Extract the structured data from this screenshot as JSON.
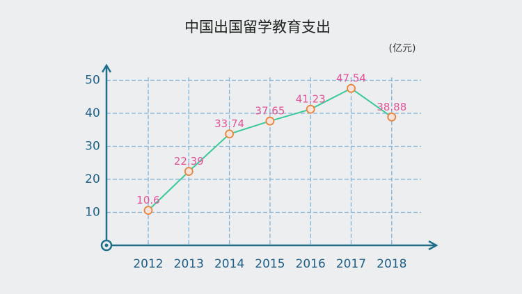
{
  "chart_data": {
    "type": "line",
    "title": "中国出国留学教育支出",
    "unit": "(亿元)",
    "categories": [
      "2012",
      "2013",
      "2014",
      "2015",
      "2016",
      "2017",
      "2018"
    ],
    "series": [
      {
        "name": "中国出国留学教育支出",
        "color": "#3cc99a",
        "values": [
          10.6,
          22.39,
          33.74,
          37.65,
          41.23,
          47.54,
          38.88
        ]
      }
    ],
    "ylim": [
      0,
      53
    ],
    "yticks": [
      10,
      20,
      30,
      40,
      50
    ],
    "grid": true,
    "marker_color": "#e8833a",
    "label_color": "#e0559a"
  }
}
